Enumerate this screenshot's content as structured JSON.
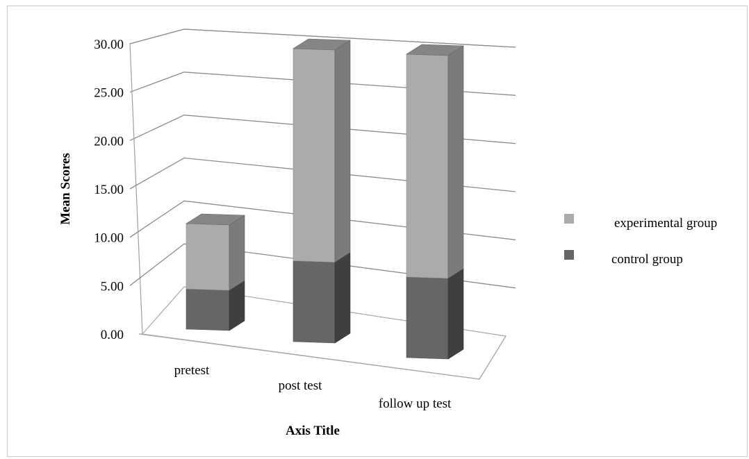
{
  "chart_data": {
    "type": "bar",
    "subtype": "3d-stacked-column",
    "categories": [
      "pretest",
      "post test",
      "follow up test"
    ],
    "series": [
      {
        "name": "control group",
        "values": [
          4.0,
          8.0,
          7.5
        ],
        "color": "#666666"
      },
      {
        "name": "experimental group",
        "values": [
          6.5,
          21.0,
          20.7
        ],
        "color": "#ababab"
      }
    ],
    "ylabel": "Mean Scores",
    "xlabel": "Axis Title",
    "ylim": [
      0,
      30
    ],
    "yticks": [
      "0.00",
      "5.00",
      "10.00",
      "15.00",
      "20.00",
      "25.00",
      "30.00"
    ],
    "grid": true,
    "legend_position": "right"
  }
}
